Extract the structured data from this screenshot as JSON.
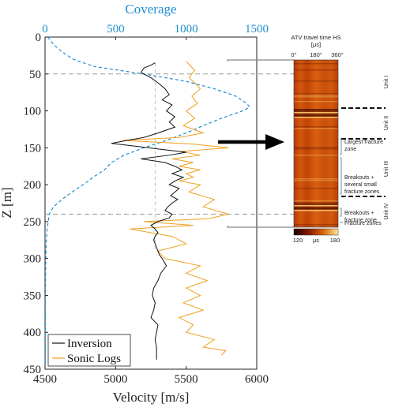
{
  "chart_data": [
    {
      "type": "line",
      "title": "",
      "xlabel": "Velocity [m/s]",
      "ylabel": "Z [m]",
      "xlim": [
        4500,
        6000
      ],
      "ylim": [
        0,
        450
      ],
      "y_inverted": true,
      "xticks": [
        "4500",
        "5000",
        "5500",
        "6000"
      ],
      "yticks": [
        "0",
        "50",
        "100",
        "150",
        "200",
        "250",
        "300",
        "350",
        "400",
        "450"
      ],
      "top_axis": {
        "label": "Coverage",
        "xlim": [
          0,
          1500
        ],
        "ticks": [
          "0",
          "500",
          "1000",
          "1500"
        ],
        "color": "#1f8fd0"
      },
      "reference_lines": {
        "horizontal_depths": [
          50,
          240
        ],
        "vertical_velocity": 5280
      },
      "series": [
        {
          "name": "Inversion",
          "color": "#111111",
          "style": "solid",
          "z": [
            35,
            38,
            42,
            48,
            55,
            62,
            70,
            78,
            85,
            92,
            100,
            108,
            115,
            122,
            130,
            136,
            140,
            144,
            148,
            152,
            156,
            160,
            165,
            170,
            175,
            180,
            185,
            190,
            195,
            200,
            205,
            210,
            215,
            220,
            225,
            230,
            235,
            240,
            245,
            250,
            255,
            260,
            265,
            270,
            275,
            280,
            285,
            290,
            295,
            300,
            310,
            320,
            330,
            340,
            350,
            360,
            370,
            380,
            390,
            400,
            410,
            420,
            430,
            437
          ],
          "velocity": [
            5280,
            5250,
            5200,
            5180,
            5250,
            5300,
            5350,
            5380,
            5330,
            5400,
            5360,
            5420,
            5380,
            5420,
            5300,
            5200,
            5080,
            4970,
            5150,
            5320,
            5500,
            5380,
            5180,
            5350,
            5420,
            5470,
            5400,
            5480,
            5420,
            5380,
            5450,
            5420,
            5390,
            5440,
            5400,
            5370,
            5350,
            5400,
            5380,
            5300,
            5250,
            5280,
            5300,
            5280,
            5270,
            5280,
            5290,
            5300,
            5310,
            5330,
            5360,
            5320,
            5300,
            5270,
            5260,
            5280,
            5270,
            5250,
            5300,
            5290,
            5280,
            5290,
            5290,
            5290
          ]
        },
        {
          "name": "Sonic Logs",
          "color": "#f0a020",
          "style": "solid",
          "z": [
            33,
            45,
            55,
            62,
            70,
            80,
            90,
            100,
            110,
            120,
            130,
            136,
            140,
            145,
            150,
            155,
            160,
            165,
            170,
            175,
            180,
            185,
            190,
            195,
            200,
            210,
            220,
            230,
            240,
            246,
            250,
            255,
            260,
            270,
            280,
            290,
            300,
            310,
            320,
            330,
            340,
            350,
            360,
            370,
            380,
            390,
            400,
            410,
            420,
            425,
            431
          ],
          "velocity": [
            5500,
            5560,
            5520,
            5560,
            5600,
            5540,
            5580,
            5500,
            5560,
            5480,
            5620,
            5450,
            5050,
            5550,
            5800,
            5460,
            5600,
            5400,
            5550,
            5450,
            5600,
            5500,
            5550,
            5450,
            5600,
            5520,
            5700,
            5620,
            5800,
            5660,
            5200,
            5550,
            5100,
            5400,
            5500,
            5300,
            5350,
            5600,
            5500,
            5650,
            5500,
            5600,
            5480,
            5620,
            5450,
            5550,
            5500,
            5700,
            5620,
            5780,
            5750
          ]
        },
        {
          "name": "Coverage",
          "color": "#1f8fd0",
          "style": "dashed",
          "axis": "top",
          "z": [
            0,
            10,
            20,
            30,
            40,
            50,
            60,
            70,
            80,
            90,
            95,
            100,
            110,
            120,
            130,
            140,
            150,
            160,
            170,
            180,
            190,
            200,
            210,
            220,
            230,
            240,
            260,
            280,
            300,
            350,
            400,
            445
          ],
          "coverage": [
            20,
            60,
            120,
            200,
            350,
            700,
            1000,
            1200,
            1350,
            1430,
            1450,
            1400,
            1250,
            1120,
            1000,
            860,
            700,
            560,
            470,
            420,
            340,
            270,
            190,
            120,
            60,
            30,
            15,
            8,
            5,
            3,
            2,
            2
          ]
        }
      ],
      "legend": {
        "placement": "bottom-left",
        "entries": [
          "Inversion",
          "Sonic Logs"
        ]
      }
    },
    {
      "type": "heatmap",
      "title": "ATV travel time HS",
      "unit_label": "[μs]",
      "x_ticks": [
        "0°",
        "180°",
        "360°"
      ],
      "colorbar": {
        "min": "120",
        "unit": "μs",
        "max": "180"
      },
      "annotations": [
        "Largest fracture zone",
        "Breakouts + several small fracture zones",
        "Breakouts + fracture zone",
        "Fracture zones"
      ],
      "units": [
        "Unit I",
        "Unit II",
        "Unit III",
        "Unit IV"
      ]
    }
  ],
  "colors": {
    "inversion": "#111111",
    "sonic": "#f0a020",
    "coverage": "#1f8fd0",
    "reference": "#999999"
  }
}
